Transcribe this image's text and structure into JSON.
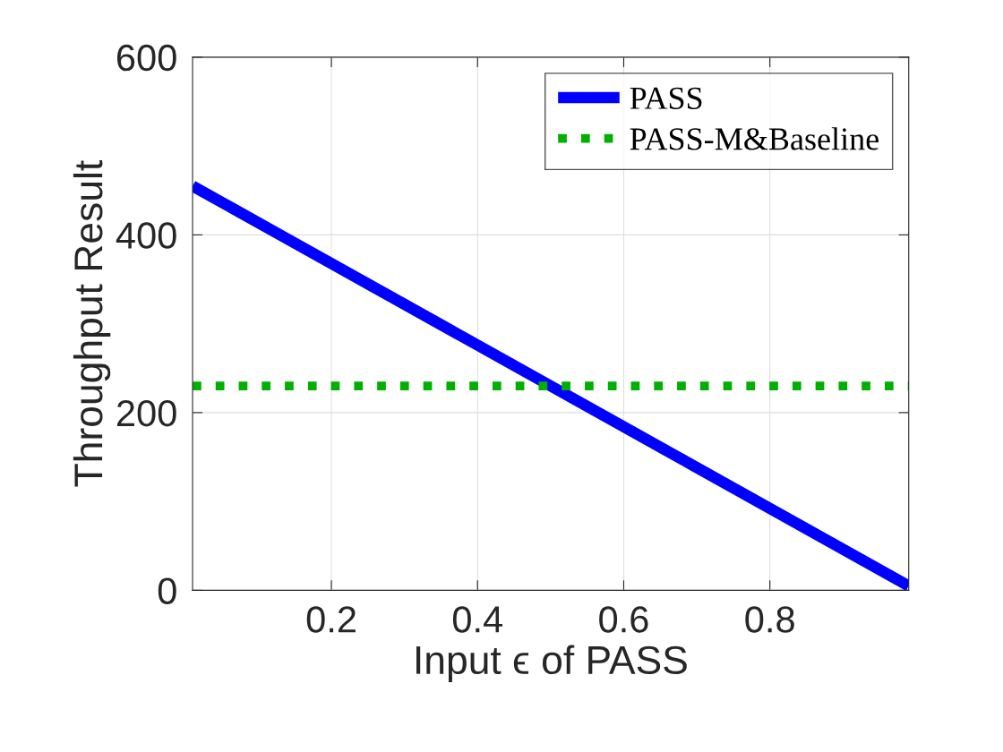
{
  "chart_data": {
    "type": "line",
    "xlabel": "Input ϵ of PASS",
    "ylabel": "Throughput Result",
    "x": [
      0.01,
      0.99
    ],
    "series": [
      {
        "name": "PASS",
        "color": "#0000ff",
        "values": [
          455,
          5
        ],
        "line_style": "solid"
      },
      {
        "name": "PASS-M&Baseline",
        "color": "#00b000",
        "values": [
          230,
          230
        ],
        "line_style": "dotted"
      }
    ],
    "xlim": [
      0.01,
      0.99
    ],
    "xticks": [
      0.2,
      0.4,
      0.6,
      0.8
    ],
    "ylim": [
      0,
      600
    ],
    "yticks": [
      0,
      200,
      400,
      600
    ],
    "grid": true,
    "legend": "top right",
    "marker": "none"
  }
}
